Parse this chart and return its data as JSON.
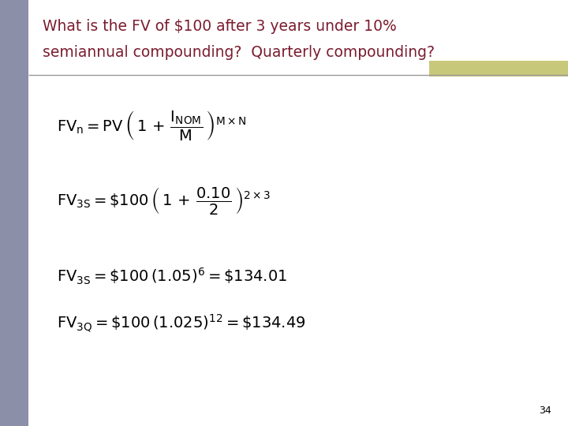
{
  "title_line1": "What is the FV of $100 after 3 years under 10%",
  "title_line2": "semiannual compounding?  Quarterly compounding?",
  "title_color": "#7B1C2E",
  "background_color": "#FFFFFF",
  "left_bar_color": "#8B8FA8",
  "right_bar_color": "#C8C87A",
  "page_number": "34",
  "fig_width": 7.2,
  "fig_height": 5.4,
  "dpi": 100
}
